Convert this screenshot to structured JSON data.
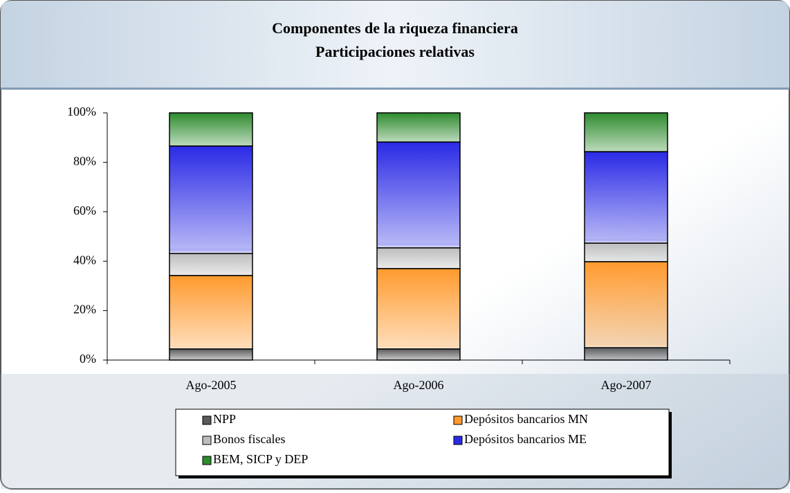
{
  "chart_data": {
    "type": "bar",
    "stacked": true,
    "title": "Componentes de la riqueza financiera",
    "subtitle": "Participaciones relativas",
    "categories": [
      "Ago-2005",
      "Ago-2006",
      "Ago-2007"
    ],
    "series": [
      {
        "name": "NPP",
        "color": "#5a5a5a",
        "values": [
          4.5,
          4.5,
          5.0
        ]
      },
      {
        "name": "Depósitos bancarios MN",
        "color": "#ff9a2e",
        "values": [
          29.7,
          32.5,
          34.8
        ]
      },
      {
        "name": "Bonos fiscales",
        "color": "#bdbdbd",
        "values": [
          8.9,
          8.4,
          7.5
        ]
      },
      {
        "name": "Depósitos bancarios ME",
        "color": "#2a2ae6",
        "values": [
          43.5,
          42.8,
          37.0
        ]
      },
      {
        "name": "BEM, SICP y DEP",
        "color": "#2e8b2e",
        "values": [
          13.4,
          11.8,
          15.7
        ]
      }
    ],
    "ylim": [
      0,
      100
    ],
    "yticks": [
      {
        "value": 0,
        "label": "0%"
      },
      {
        "value": 20,
        "label": "20%"
      },
      {
        "value": 40,
        "label": "40%"
      },
      {
        "value": 60,
        "label": "60%"
      },
      {
        "value": 80,
        "label": "80%"
      },
      {
        "value": 100,
        "label": "100%"
      }
    ],
    "legend": "bottom"
  }
}
